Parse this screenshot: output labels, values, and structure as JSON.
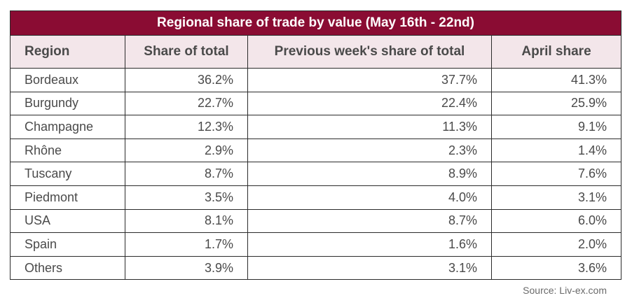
{
  "chart_data": {
    "type": "table",
    "title": "Regional share of trade by value (May 16th - 22nd)",
    "columns": [
      "Region",
      "Share of total",
      "Previous week's share of total",
      "April share"
    ],
    "rows": [
      [
        "Bordeaux",
        "36.2%",
        "37.7%",
        "41.3%"
      ],
      [
        "Burgundy",
        "22.7%",
        "22.4%",
        "25.9%"
      ],
      [
        "Champagne",
        "12.3%",
        "11.3%",
        "9.1%"
      ],
      [
        "Rhône",
        "2.9%",
        "2.3%",
        "1.4%"
      ],
      [
        "Tuscany",
        "8.7%",
        "8.9%",
        "7.6%"
      ],
      [
        "Piedmont",
        "3.5%",
        "4.0%",
        "3.1%"
      ],
      [
        "USA",
        "8.1%",
        "8.7%",
        "6.0%"
      ],
      [
        "Spain",
        "1.7%",
        "1.6%",
        "2.0%"
      ],
      [
        "Others",
        "3.9%",
        "3.1%",
        "3.6%"
      ]
    ],
    "source": "Source: Liv-ex.com"
  },
  "colors": {
    "title_background": "#8a0c33",
    "header_background": "#f3e6ea",
    "title_text": "#ffffff"
  }
}
